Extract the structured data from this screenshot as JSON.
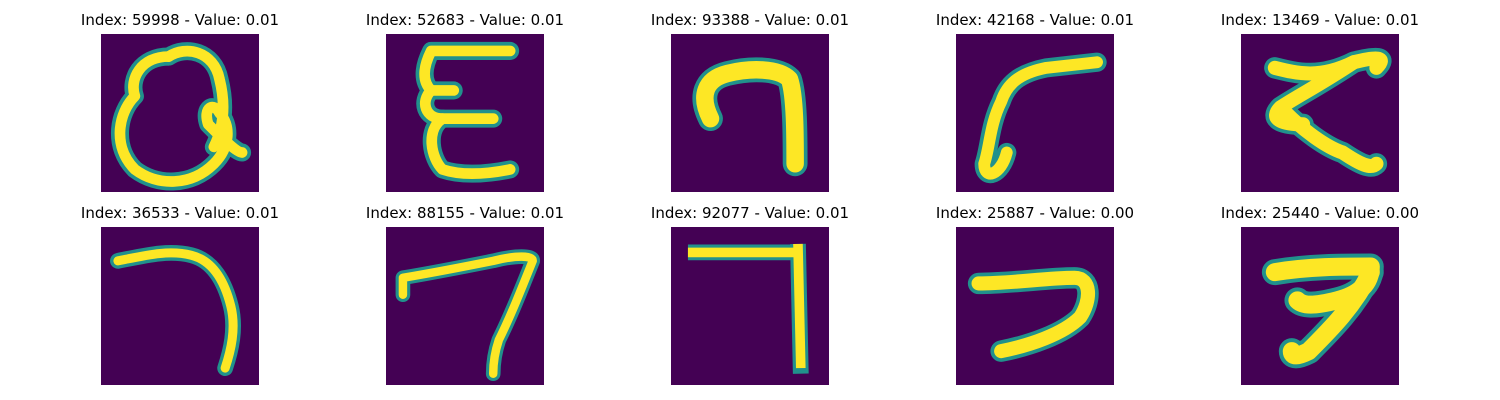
{
  "colors": {
    "background_low": "#440154",
    "stroke_mid": "#21918c",
    "stroke_high": "#fde725"
  },
  "panels": [
    {
      "title": "Index: 59998 - Value: 0.01",
      "glyph": "handwritten-curl-character"
    },
    {
      "title": "Index: 52683 - Value: 0.01",
      "glyph": "handwritten-e-like-character"
    },
    {
      "title": "Index: 93388 - Value: 0.01",
      "glyph": "handwritten-n-hook-character"
    },
    {
      "title": "Index: 42168 - Value: 0.01",
      "glyph": "handwritten-r-hook-character"
    },
    {
      "title": "Index: 13469 - Value: 0.01",
      "glyph": "handwritten-slanted-character"
    },
    {
      "title": "Index: 36533 - Value: 0.01",
      "glyph": "handwritten-7-like-character"
    },
    {
      "title": "Index: 88155 - Value: 0.01",
      "glyph": "handwritten-7-like-character"
    },
    {
      "title": "Index: 92077 - Value: 0.01",
      "glyph": "handwritten-7-like-character"
    },
    {
      "title": "Index: 25887 - Value: 0.00",
      "glyph": "handwritten-2-like-character"
    },
    {
      "title": "Index: 25440 - Value: 0.00",
      "glyph": "handwritten-7-like-character"
    }
  ]
}
